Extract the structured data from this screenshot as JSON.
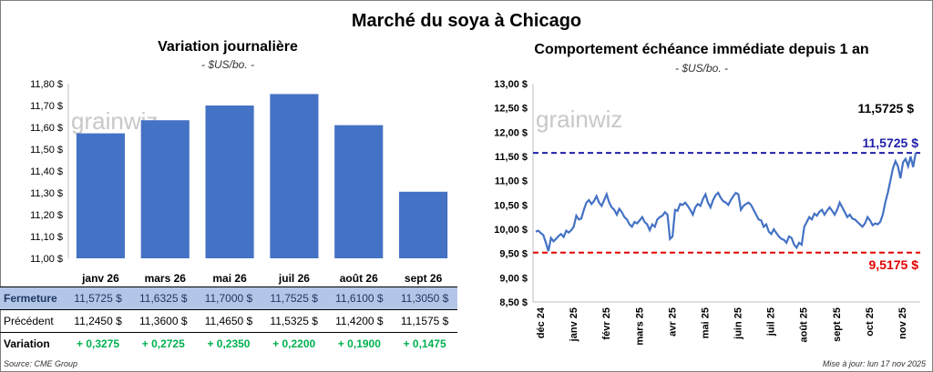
{
  "page_title": "Marché du soya à Chicago",
  "source_note": "Source: CME Group",
  "update_note": "Mise à jour: lun 17 nov 2025",
  "watermark": "grainwiz",
  "chart_data": [
    {
      "type": "bar",
      "title": "Variation journalière",
      "subtitle": "- $US/bo. -",
      "categories": [
        "janv 26",
        "mars 26",
        "mai 26",
        "juil 26",
        "août 26",
        "sept 26"
      ],
      "values": [
        11.5725,
        11.6325,
        11.7,
        11.7525,
        11.61,
        11.305
      ],
      "ylim": [
        11.0,
        11.8
      ],
      "yticks": [
        "11,00 $",
        "11,10 $",
        "11,20 $",
        "11,30 $",
        "11,40 $",
        "11,50 $",
        "11,60 $",
        "11,70 $",
        "11,80 $"
      ],
      "color": "#4472c4",
      "grid": false
    },
    {
      "type": "line",
      "title": "Comportement échéance immédiate depuis 1 an",
      "subtitle": "- $US/bo. -",
      "ylim": [
        8.5,
        13.0
      ],
      "yticks": [
        "8,50 $",
        "9,00 $",
        "9,50 $",
        "10,00 $",
        "10,50 $",
        "11,00 $",
        "11,50 $",
        "12,00 $",
        "12,50 $",
        "13,00 $"
      ],
      "xticks": [
        "déc 24",
        "janv 25",
        "févr 25",
        "mars 25",
        "avr 25",
        "mai 25",
        "juin 25",
        "juil 25",
        "août 25",
        "sept 25",
        "oct 25",
        "nov 25"
      ],
      "color": "#4472c4",
      "last_label": "11,5725 $",
      "max_label": "11,5725 $",
      "min_label": "9,5175 $",
      "max_value": 11.5725,
      "min_value": 9.5175,
      "max_color": "#1f1fa8",
      "min_color": "#e00000",
      "values": [
        9.95,
        9.97,
        9.92,
        9.88,
        9.72,
        9.55,
        9.82,
        9.75,
        9.8,
        9.86,
        9.9,
        9.84,
        9.97,
        9.93,
        9.98,
        10.05,
        10.28,
        10.2,
        10.22,
        10.4,
        10.55,
        10.6,
        10.52,
        10.58,
        10.68,
        10.55,
        10.48,
        10.6,
        10.72,
        10.55,
        10.45,
        10.4,
        10.3,
        10.42,
        10.35,
        10.25,
        10.2,
        10.1,
        10.05,
        10.15,
        10.12,
        10.18,
        10.25,
        10.15,
        10.1,
        9.98,
        10.1,
        10.05,
        10.2,
        10.25,
        10.28,
        10.35,
        10.3,
        9.8,
        9.85,
        10.4,
        10.38,
        10.52,
        10.5,
        10.55,
        10.48,
        10.4,
        10.3,
        10.45,
        10.52,
        10.48,
        10.62,
        10.72,
        10.55,
        10.45,
        10.6,
        10.7,
        10.75,
        10.65,
        10.58,
        10.55,
        10.5,
        10.6,
        10.68,
        10.75,
        10.72,
        10.4,
        10.48,
        10.52,
        10.55,
        10.5,
        10.4,
        10.3,
        10.2,
        10.18,
        10.05,
        10.1,
        9.95,
        9.9,
        10.0,
        9.92,
        9.85,
        9.8,
        9.78,
        9.72,
        9.85,
        9.82,
        9.68,
        9.62,
        9.72,
        9.68,
        10.05,
        10.15,
        10.25,
        10.2,
        10.32,
        10.28,
        10.36,
        10.4,
        10.3,
        10.38,
        10.45,
        10.38,
        10.3,
        10.4,
        10.55,
        10.45,
        10.35,
        10.25,
        10.3,
        10.22,
        10.2,
        10.15,
        10.1,
        10.05,
        10.12,
        10.25,
        10.18,
        10.08,
        10.12,
        10.1,
        10.15,
        10.3,
        10.55,
        10.75,
        11.0,
        11.25,
        11.4,
        11.3,
        11.05,
        11.38,
        11.45,
        11.3,
        11.5,
        11.28,
        11.5725
      ]
    }
  ],
  "table": {
    "rows": [
      {
        "label": "Fermeture",
        "values": [
          "11,5725  $",
          "11,6325  $",
          "11,7000  $",
          "11,7525  $",
          "11,6100  $",
          "11,3050  $"
        ]
      },
      {
        "label": "Précédent",
        "values": [
          "11,2450  $",
          "11,3600  $",
          "11,4650  $",
          "11,5325  $",
          "11,4200  $",
          "11,1575  $"
        ]
      },
      {
        "label": "Variation",
        "values": [
          "+ 0,3275",
          "+ 0,2725",
          "+ 0,2350",
          "+ 0,2200",
          "+ 0,1900",
          "+ 0,1475"
        ]
      }
    ]
  }
}
